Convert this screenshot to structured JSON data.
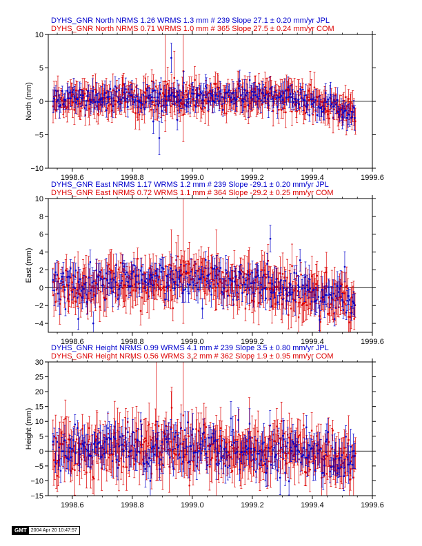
{
  "chart_data": [
    {
      "type": "scatter",
      "title_lines": [
        {
          "text": "DYHS_GNR North NRMS 1.26 WRMS  1.3 mm # 239 Slope   27.1 ±  0.20 mm/yr JPL",
          "color": "#0000cc"
        },
        {
          "text": "DYHS_GNR North NRMS 0.71 WRMS  1.0 mm # 365 Slope   27.5 ±  0.24 mm/yr COM",
          "color": "#dd0000"
        }
      ],
      "ylabel": "North (mm)",
      "xlim": [
        1998.52,
        1999.6
      ],
      "ylim": [
        -10,
        10
      ],
      "x_ticks": [
        1998.6,
        1998.8,
        1999.0,
        1999.2,
        1999.4,
        1999.6
      ],
      "x_tick_labels": [
        "1998.6",
        "1998.8",
        "1999.0",
        "1999.2",
        "1999.4",
        "1999.6"
      ],
      "y_ticks": [
        -10,
        -5,
        0,
        5,
        10
      ],
      "y_tick_labels": [
        "−10",
        "−5",
        "0",
        "5",
        "10"
      ],
      "trend": {
        "start": 0.3,
        "mid": 0.7,
        "mid_x": 1999.28,
        "end": -1.5,
        "noise": 1.0
      },
      "outliers": [
        {
          "series": "red",
          "x": 1998.91,
          "y": 3.0,
          "err": 7.5
        },
        {
          "series": "red",
          "x": 1998.97,
          "y": 4.5,
          "err": 5.5
        },
        {
          "series": "red",
          "x": 1998.97,
          "y": -2.0,
          "err": 4.0
        },
        {
          "series": "blue",
          "x": 1998.89,
          "y": -5.5,
          "err": 2.5
        },
        {
          "series": "blue",
          "x": 1998.93,
          "y": 6.5,
          "err": 2.2
        },
        {
          "series": "blue",
          "x": 1998.87,
          "y": -3.0,
          "err": 1.8
        },
        {
          "series": "red",
          "x": 1998.94,
          "y": 3.5,
          "err": 4.0
        },
        {
          "series": "blue",
          "x": 1998.95,
          "y": -2.8,
          "err": 1.5
        }
      ],
      "series": [
        {
          "name": "JPL",
          "color": "#0000cc",
          "count": 239,
          "err": 1.3
        },
        {
          "name": "COM",
          "color": "#dd0000",
          "count": 365,
          "err": 1.7
        }
      ]
    },
    {
      "type": "scatter",
      "title_lines": [
        {
          "text": "DYHS_GNR East NRMS 1.17 WRMS  1.2 mm # 239 Slope  -29.1 ±  0.20 mm/yr JPL",
          "color": "#0000cc"
        },
        {
          "text": "DYHS_GNR East NRMS 0.72 WRMS  1.1 mm # 364 Slope  -29.2 ±  0.25 mm/yr COM",
          "color": "#dd0000"
        }
      ],
      "ylabel": "East (mm)",
      "xlim": [
        1998.52,
        1999.6
      ],
      "ylim": [
        -5,
        10
      ],
      "x_ticks": [
        1998.6,
        1998.8,
        1999.0,
        1999.2,
        1999.4,
        1999.6
      ],
      "x_tick_labels": [
        "1998.6",
        "1998.8",
        "1999.0",
        "1999.2",
        "1999.4",
        "1999.6"
      ],
      "y_ticks": [
        -4,
        -2,
        0,
        2,
        4,
        6,
        8,
        10
      ],
      "y_tick_labels": [
        "−4",
        "−2",
        "0",
        "2",
        "4",
        "6",
        "8",
        "10"
      ],
      "trend": {
        "start": 0.0,
        "mid": 1.3,
        "mid_x": 1999.05,
        "end": -1.5,
        "noise": 1.2
      },
      "outliers": [
        {
          "series": "red",
          "x": 1998.97,
          "y": 3.0,
          "err": 7.0
        },
        {
          "series": "red",
          "x": 1999.08,
          "y": 2.0,
          "err": 4.5
        },
        {
          "series": "red",
          "x": 1998.93,
          "y": 2.5,
          "err": 4.0
        },
        {
          "series": "blue",
          "x": 1999.26,
          "y": 5.5,
          "err": 1.5
        },
        {
          "series": "red",
          "x": 1999.19,
          "y": 1.0,
          "err": 3.5
        },
        {
          "series": "blue",
          "x": 1998.62,
          "y": -3.5,
          "err": 1.2
        },
        {
          "series": "blue",
          "x": 1998.67,
          "y": -4.0,
          "err": 1.3
        }
      ],
      "series": [
        {
          "name": "JPL",
          "color": "#0000cc",
          "count": 239,
          "err": 1.2
        },
        {
          "name": "COM",
          "color": "#dd0000",
          "count": 364,
          "err": 1.7
        }
      ]
    },
    {
      "type": "scatter",
      "title_lines": [
        {
          "text": "DYHS_GNR Height NRMS 0.99 WRMS  4.1 mm # 239 Slope    3.5 ±  0.80 mm/yr JPL",
          "color": "#0000cc"
        },
        {
          "text": "DYHS_GNR Height NRMS 0.56 WRMS  3.2 mm # 362 Slope    1.9 ±  0.95 mm/yr COM",
          "color": "#dd0000"
        }
      ],
      "ylabel": "Height (mm)",
      "xlim": [
        1998.52,
        1999.6
      ],
      "ylim": [
        -15,
        30
      ],
      "x_ticks": [
        1998.6,
        1998.8,
        1999.0,
        1999.2,
        1999.4,
        1999.6
      ],
      "x_tick_labels": [
        "1998.6",
        "1998.8",
        "1999.0",
        "1999.2",
        "1999.4",
        "1999.6"
      ],
      "y_ticks": [
        -15,
        -10,
        -5,
        0,
        5,
        10,
        15,
        20,
        25,
        30
      ],
      "y_tick_labels": [
        "−15",
        "−10",
        "−5",
        "0",
        "5",
        "10",
        "15",
        "20",
        "25",
        "30"
      ],
      "trend": {
        "start": 1.0,
        "mid": 1.0,
        "mid_x": 1999.1,
        "end": -3.0,
        "noise": 4.0
      },
      "outliers": [
        {
          "series": "red",
          "x": 1998.88,
          "y": 10.0,
          "err": 20.0
        },
        {
          "series": "red",
          "x": 1998.97,
          "y": 12.0,
          "err": 18.0
        },
        {
          "series": "red",
          "x": 1999.08,
          "y": -3.0,
          "err": 15.0
        },
        {
          "series": "red",
          "x": 1998.93,
          "y": 8.0,
          "err": 12.0
        },
        {
          "series": "blue",
          "x": 1998.86,
          "y": -10.0,
          "err": 5.0
        },
        {
          "series": "red",
          "x": 1999.19,
          "y": 6.0,
          "err": 12.0
        },
        {
          "series": "blue",
          "x": 1999.38,
          "y": 8.0,
          "err": 4.0
        }
      ],
      "series": [
        {
          "name": "JPL",
          "color": "#0000cc",
          "count": 239,
          "err": 4.5
        },
        {
          "name": "COM",
          "color": "#dd0000",
          "count": 362,
          "err": 6.0
        }
      ]
    }
  ],
  "footer": {
    "logo": "GMT",
    "timestamp": "2004 Apr 20 10:47:57"
  }
}
